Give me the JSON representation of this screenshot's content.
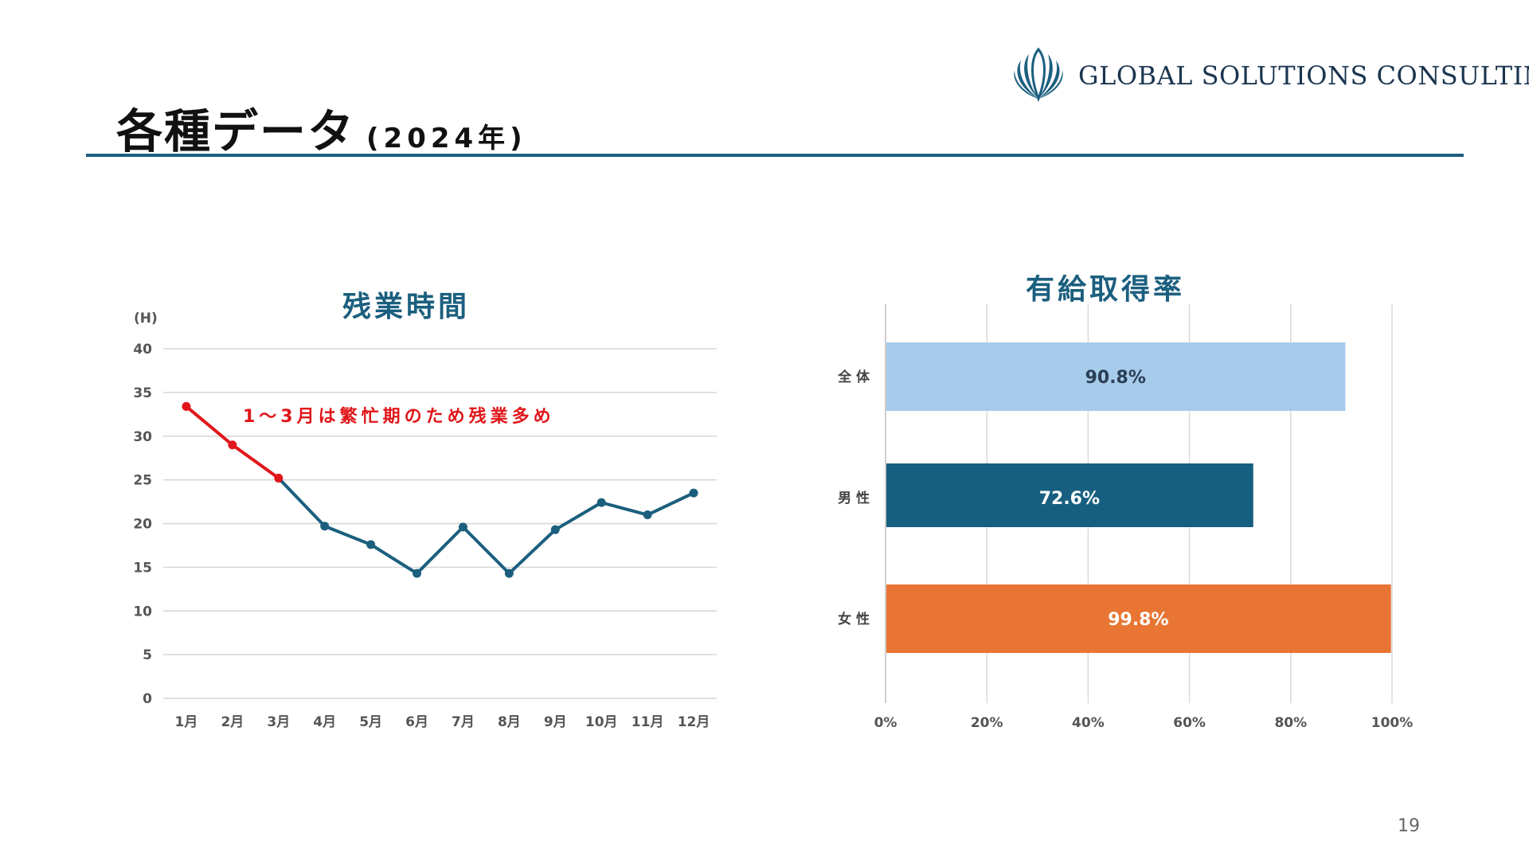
{
  "slide": {
    "title": "各種データ",
    "year": "(2024年)",
    "logo_text": "GLOBAL SOLUTIONS CONSULTING",
    "page_number": "19"
  },
  "colors": {
    "accent": "#1e5f80",
    "line_series": "#1b5f7e",
    "highlight_red": "#e0161a",
    "bar_all": "#a7cbeb",
    "bar_male": "#175f80",
    "bar_female": "#e87533"
  },
  "chart_data": [
    {
      "type": "line",
      "title": "残業時間",
      "ylabel": "(H)",
      "xlabel": "",
      "categories": [
        "1月",
        "2月",
        "3月",
        "4月",
        "5月",
        "6月",
        "7月",
        "8月",
        "9月",
        "10月",
        "11月",
        "12月"
      ],
      "series": [
        {
          "values": [
            33.4,
            29.0,
            25.2,
            19.7,
            17.6,
            14.3,
            19.6,
            14.3,
            19.3,
            22.4,
            21.0,
            23.5
          ]
        }
      ],
      "highlight_range": [
        0,
        2
      ],
      "annotation": "1～3月は繁忙期のため残業多め",
      "ylim": [
        0,
        40
      ],
      "yticks": [
        0,
        5,
        10,
        15,
        20,
        25,
        30,
        35,
        40
      ],
      "grid": true
    },
    {
      "type": "bar",
      "orientation": "horizontal",
      "title": "有給取得率",
      "categories": [
        "全 体",
        "男 性",
        "女 性"
      ],
      "values": [
        90.8,
        72.6,
        99.8
      ],
      "data_labels": [
        "90.8%",
        "72.6%",
        "99.8%"
      ],
      "xlim": [
        0,
        100
      ],
      "xticks": [
        "0%",
        "20%",
        "40%",
        "60%",
        "80%",
        "100%"
      ],
      "grid": true
    }
  ]
}
